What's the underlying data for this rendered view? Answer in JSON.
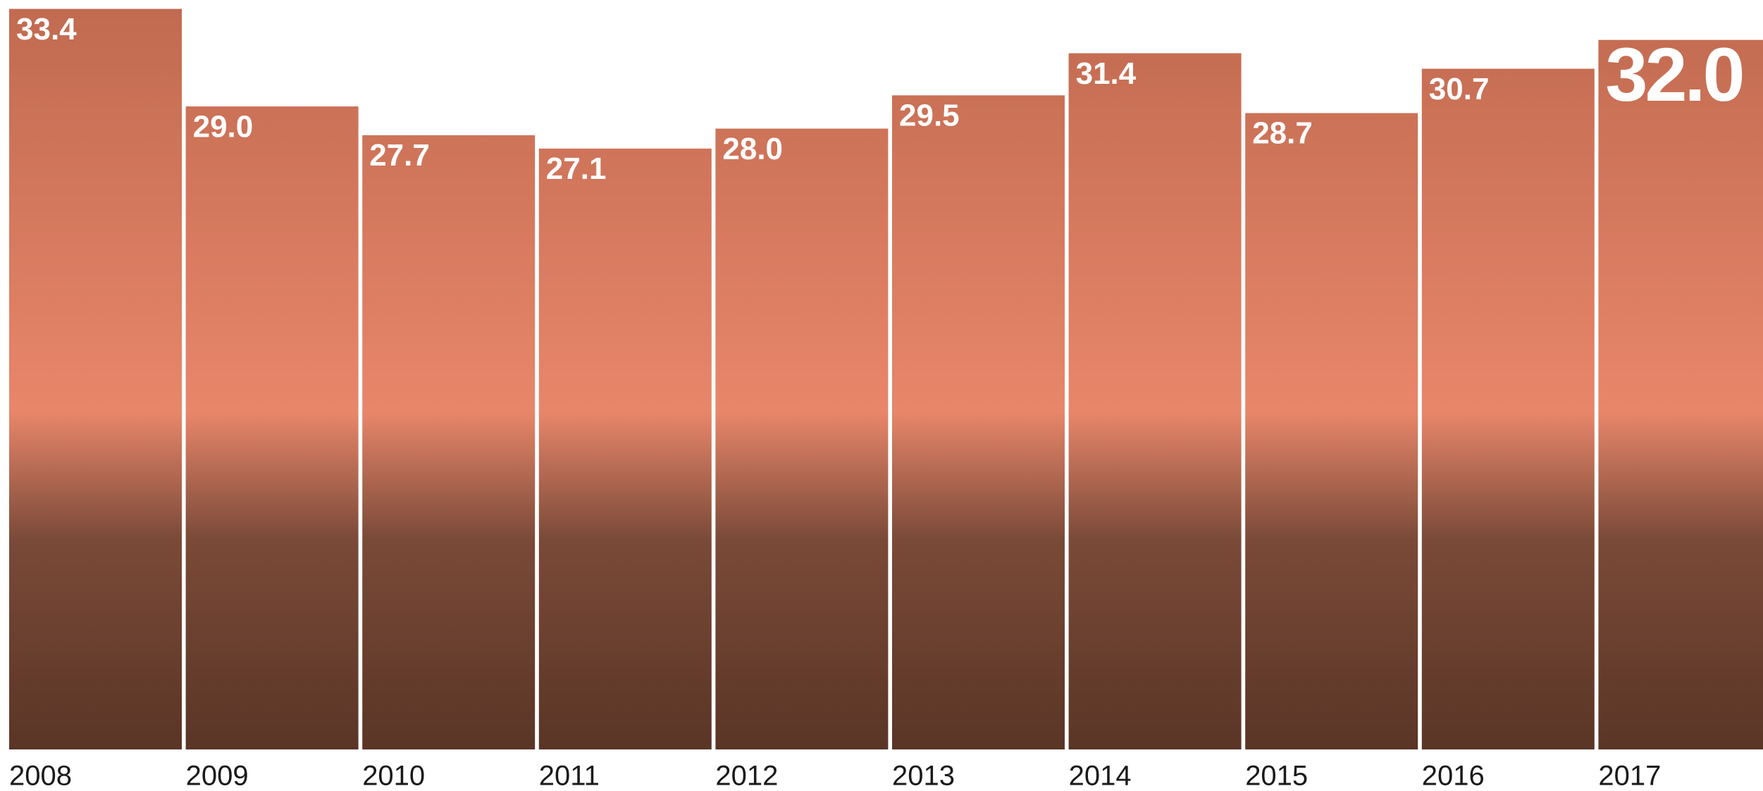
{
  "chart_data": {
    "type": "bar",
    "categories": [
      "2008",
      "2009",
      "2010",
      "2011",
      "2012",
      "2013",
      "2014",
      "2015",
      "2016",
      "2017"
    ],
    "values": [
      33.4,
      29.0,
      27.7,
      27.1,
      28.0,
      29.5,
      31.4,
      28.7,
      30.7,
      32.0
    ],
    "value_labels": [
      "33.4",
      "29.0",
      "27.7",
      "27.1",
      "28.0",
      "29.5",
      "31.4",
      "28.7",
      "30.7",
      "32.0"
    ],
    "color": "#e8866a",
    "ylim": [
      0,
      33.8
    ]
  }
}
